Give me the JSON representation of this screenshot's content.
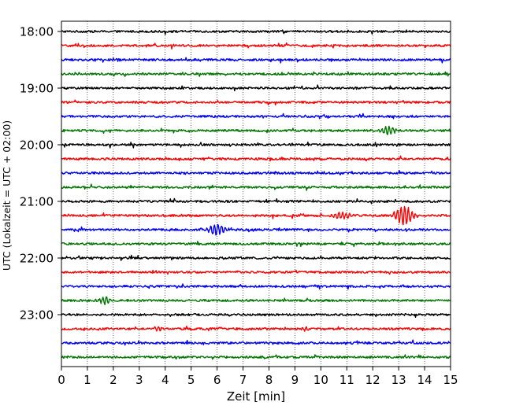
{
  "chart_data": {
    "type": "line",
    "title": "",
    "xlabel": "Zeit  [min]",
    "ylabel": "UTC (Lokalzeit = UTC + 02:00)",
    "xlim": [
      0,
      15
    ],
    "x_ticks": [
      "0",
      "1",
      "2",
      "3",
      "4",
      "5",
      "6",
      "7",
      "8",
      "9",
      "10",
      "11",
      "12",
      "13",
      "14",
      "15"
    ],
    "y_tick_labels": [
      "18:00",
      "19:00",
      "20:00",
      "21:00",
      "22:00",
      "23:00"
    ],
    "grid": "vertical dotted lines at each minute",
    "legend": "none",
    "trace_minutes": 15,
    "trace_colors": [
      "#000000",
      "#ff0000",
      "#0000ff",
      "#007700"
    ],
    "series": [
      {
        "start": "18:00",
        "events": []
      },
      {
        "start": "18:15",
        "events": []
      },
      {
        "start": "18:30",
        "events": []
      },
      {
        "start": "18:45",
        "events": []
      },
      {
        "start": "19:00",
        "events": []
      },
      {
        "start": "19:15",
        "events": []
      },
      {
        "start": "19:30",
        "events": []
      },
      {
        "start": "19:45",
        "events": [
          {
            "t": 12.6,
            "amp": 0.25,
            "dur": 0.6
          }
        ]
      },
      {
        "start": "20:00",
        "events": []
      },
      {
        "start": "20:15",
        "events": []
      },
      {
        "start": "20:30",
        "events": []
      },
      {
        "start": "20:45",
        "events": []
      },
      {
        "start": "21:00",
        "events": []
      },
      {
        "start": "21:15",
        "events": [
          {
            "t": 10.8,
            "amp": 0.2,
            "dur": 0.8
          },
          {
            "t": 13.2,
            "amp": 0.55,
            "dur": 0.8
          }
        ]
      },
      {
        "start": "21:30",
        "events": [
          {
            "t": 6.0,
            "amp": 0.35,
            "dur": 0.7
          }
        ]
      },
      {
        "start": "21:45",
        "events": []
      },
      {
        "start": "22:00",
        "events": []
      },
      {
        "start": "22:15",
        "events": []
      },
      {
        "start": "22:30",
        "events": []
      },
      {
        "start": "22:45",
        "events": [
          {
            "t": 1.7,
            "amp": 0.25,
            "dur": 0.5
          }
        ]
      },
      {
        "start": "23:00",
        "events": []
      },
      {
        "start": "23:15",
        "events": [
          {
            "t": 3.7,
            "amp": 0.15,
            "dur": 0.3
          },
          {
            "t": 9.4,
            "amp": 0.15,
            "dur": 0.3
          }
        ]
      },
      {
        "start": "23:30",
        "events": []
      },
      {
        "start": "23:45",
        "events": []
      }
    ]
  }
}
